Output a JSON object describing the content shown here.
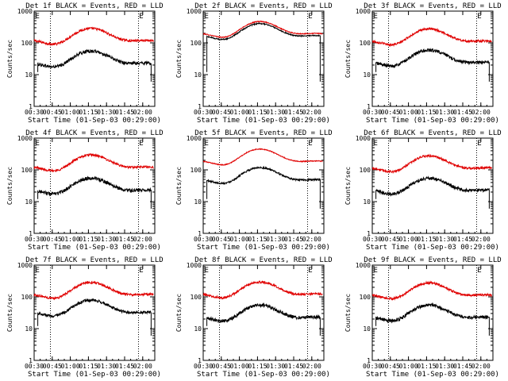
{
  "figure": {
    "background": "#ffffff",
    "axis_color": "#000000"
  },
  "chart_data": [
    {
      "type": "line",
      "title": "Det 1f BLACK = Events, RED = LLD",
      "ylabel": "Counts/sec",
      "xlabel": "Start Time (01-Sep-03 00:29:00)",
      "ylim": [
        1,
        1000
      ],
      "yscale": "log",
      "xlim_min": [
        30,
        130
      ],
      "xtick_labels": [
        "00:30",
        "00:45",
        "01:00",
        "01:15",
        "01:30",
        "01:45",
        "02:00"
      ],
      "xtick_min": [
        30,
        45,
        60,
        75,
        90,
        105,
        120
      ],
      "ytick_labels": [
        "1",
        "10",
        "100",
        "1000"
      ],
      "ytick_values": [
        1,
        10,
        100,
        1000
      ],
      "vlines_min": [
        43.5,
        116.5
      ],
      "marker_label": "E",
      "marker_min": [
        31,
        117
      ],
      "series": [
        {
          "name": "LLD",
          "color": "#e00000",
          "x_start": 30,
          "x_end": 129,
          "base": 145,
          "amp": 1.0,
          "noise": 0.08
        },
        {
          "name": "Events",
          "color": "#000000",
          "x_start": 33,
          "x_end": 127,
          "base": 28,
          "amp": 1.0,
          "noise": 0.12
        }
      ]
    },
    {
      "type": "line",
      "title": "Det 2f BLACK = Events, RED = LLD",
      "ylabel": "Counts/sec",
      "xlabel": "Start Time (01-Sep-03 00:29:00)",
      "ylim": [
        1,
        1000
      ],
      "yscale": "log",
      "xlim_min": [
        30,
        130
      ],
      "xtick_labels": [
        "00:30",
        "00:45",
        "01:00",
        "01:15",
        "01:30",
        "01:45",
        "02:00"
      ],
      "xtick_min": [
        30,
        45,
        60,
        75,
        90,
        105,
        120
      ],
      "ytick_labels": [
        "1",
        "10",
        "100",
        "1000"
      ],
      "ytick_values": [
        1,
        10,
        100,
        1000
      ],
      "vlines_min": [
        43.5,
        116.5
      ],
      "marker_label": "E",
      "marker_min": [
        31,
        117
      ],
      "series": [
        {
          "name": "LLD",
          "color": "#e00000",
          "x_start": 30,
          "x_end": 129,
          "base": 240,
          "amp": 1.0,
          "noise": 0.03
        },
        {
          "name": "Events",
          "color": "#000000",
          "x_start": 33,
          "x_end": 127,
          "base": 205,
          "amp": 1.0,
          "noise": 0.04
        }
      ]
    },
    {
      "type": "line",
      "title": "Det 3f BLACK = Events, RED = LLD",
      "ylabel": "Counts/sec",
      "xlabel": "Start Time (01-Sep-03 00:29:00)",
      "ylim": [
        1,
        1000
      ],
      "yscale": "log",
      "xlim_min": [
        30,
        130
      ],
      "xtick_labels": [
        "00:30",
        "00:45",
        "01:00",
        "01:15",
        "01:30",
        "01:45",
        "02:00"
      ],
      "xtick_min": [
        30,
        45,
        60,
        75,
        90,
        105,
        120
      ],
      "ytick_labels": [
        "1",
        "10",
        "100",
        "1000"
      ],
      "ytick_values": [
        1,
        10,
        100,
        1000
      ],
      "vlines_min": [
        43.5,
        116.5
      ],
      "marker_label": "E",
      "marker_min": [
        31,
        117
      ],
      "series": [
        {
          "name": "LLD",
          "color": "#e00000",
          "x_start": 30,
          "x_end": 129,
          "base": 140,
          "amp": 1.0,
          "noise": 0.08
        },
        {
          "name": "Events",
          "color": "#000000",
          "x_start": 33,
          "x_end": 127,
          "base": 30,
          "amp": 1.0,
          "noise": 0.12
        }
      ]
    },
    {
      "type": "line",
      "title": "Det 4f BLACK = Events, RED = LLD",
      "ylabel": "Counts/sec",
      "xlabel": "Start Time (01-Sep-03 00:29:00)",
      "ylim": [
        1,
        1000
      ],
      "yscale": "log",
      "xlim_min": [
        30,
        130
      ],
      "xtick_labels": [
        "00:30",
        "00:45",
        "01:00",
        "01:15",
        "01:30",
        "01:45",
        "02:00"
      ],
      "xtick_min": [
        30,
        45,
        60,
        75,
        90,
        105,
        120
      ],
      "ytick_labels": [
        "1",
        "10",
        "100",
        "1000"
      ],
      "ytick_values": [
        1,
        10,
        100,
        1000
      ],
      "vlines_min": [
        43.5,
        116.5
      ],
      "marker_label": "E",
      "marker_min": [
        31,
        117
      ],
      "series": [
        {
          "name": "LLD",
          "color": "#e00000",
          "x_start": 30,
          "x_end": 129,
          "base": 150,
          "amp": 1.0,
          "noise": 0.08
        },
        {
          "name": "Events",
          "color": "#000000",
          "x_start": 33,
          "x_end": 127,
          "base": 28,
          "amp": 1.0,
          "noise": 0.12
        }
      ]
    },
    {
      "type": "line",
      "title": "Det 5f BLACK = Events, RED = LLD",
      "ylabel": "Counts/sec",
      "xlabel": "Start Time (01-Sep-03 00:29:00)",
      "ylim": [
        1,
        1000
      ],
      "yscale": "log",
      "xlim_min": [
        30,
        130
      ],
      "xtick_labels": [
        "00:30",
        "00:45",
        "01:00",
        "01:15",
        "01:30",
        "01:45",
        "02:00"
      ],
      "xtick_min": [
        30,
        45,
        60,
        75,
        90,
        105,
        120
      ],
      "ytick_labels": [
        "1",
        "10",
        "100",
        "1000"
      ],
      "ytick_values": [
        1,
        10,
        100,
        1000
      ],
      "vlines_min": [
        43.5,
        116.5
      ],
      "marker_label": "E",
      "marker_min": [
        31,
        117
      ],
      "series": [
        {
          "name": "LLD",
          "color": "#e00000",
          "x_start": 30,
          "x_end": 129,
          "base": 230,
          "amp": 1.0,
          "noise": 0.03
        },
        {
          "name": "Events",
          "color": "#000000",
          "x_start": 33,
          "x_end": 127,
          "base": 60,
          "amp": 1.0,
          "noise": 0.06
        }
      ]
    },
    {
      "type": "line",
      "title": "Det 6f BLACK = Events, RED = LLD",
      "ylabel": "Counts/sec",
      "xlabel": "Start Time (01-Sep-03 00:29:00)",
      "ylim": [
        1,
        1000
      ],
      "yscale": "log",
      "xlim_min": [
        30,
        130
      ],
      "xtick_labels": [
        "00:30",
        "00:45",
        "01:00",
        "01:15",
        "01:30",
        "01:45",
        "02:00"
      ],
      "xtick_min": [
        30,
        45,
        60,
        75,
        90,
        105,
        120
      ],
      "ytick_labels": [
        "1",
        "10",
        "100",
        "1000"
      ],
      "ytick_values": [
        1,
        10,
        100,
        1000
      ],
      "vlines_min": [
        43.5,
        116.5
      ],
      "marker_label": "E",
      "marker_min": [
        31,
        117
      ],
      "series": [
        {
          "name": "LLD",
          "color": "#e00000",
          "x_start": 30,
          "x_end": 129,
          "base": 140,
          "amp": 1.0,
          "noise": 0.08
        },
        {
          "name": "Events",
          "color": "#000000",
          "x_start": 33,
          "x_end": 127,
          "base": 28,
          "amp": 1.0,
          "noise": 0.12
        }
      ]
    },
    {
      "type": "line",
      "title": "Det 7f BLACK = Events, RED = LLD",
      "ylabel": "Counts/sec",
      "xlabel": "Start Time (01-Sep-03 00:29:00)",
      "ylim": [
        1,
        1000
      ],
      "yscale": "log",
      "xlim_min": [
        30,
        130
      ],
      "xtick_labels": [
        "00:30",
        "00:45",
        "01:00",
        "01:15",
        "01:30",
        "01:45",
        "02:00"
      ],
      "xtick_min": [
        30,
        45,
        60,
        75,
        90,
        105,
        120
      ],
      "ytick_labels": [
        "1",
        "10",
        "100",
        "1000"
      ],
      "ytick_values": [
        1,
        10,
        100,
        1000
      ],
      "vlines_min": [
        43.5,
        116.5
      ],
      "marker_label": "E",
      "marker_min": [
        31,
        117
      ],
      "series": [
        {
          "name": "LLD",
          "color": "#e00000",
          "x_start": 30,
          "x_end": 129,
          "base": 145,
          "amp": 1.0,
          "noise": 0.08
        },
        {
          "name": "Events",
          "color": "#000000",
          "x_start": 33,
          "x_end": 127,
          "base": 40,
          "amp": 1.0,
          "noise": 0.1
        }
      ]
    },
    {
      "type": "line",
      "title": "Det 8f BLACK = Events, RED = LLD",
      "ylabel": "Counts/sec",
      "xlabel": "Start Time (01-Sep-03 00:29:00)",
      "ylim": [
        1,
        1000
      ],
      "yscale": "log",
      "xlim_min": [
        30,
        130
      ],
      "xtick_labels": [
        "00:30",
        "00:45",
        "01:00",
        "01:15",
        "01:30",
        "01:45",
        "02:00"
      ],
      "xtick_min": [
        30,
        45,
        60,
        75,
        90,
        105,
        120
      ],
      "ytick_labels": [
        "1",
        "10",
        "100",
        "1000"
      ],
      "ytick_values": [
        1,
        10,
        100,
        1000
      ],
      "vlines_min": [
        43.5,
        116.5
      ],
      "marker_label": "E",
      "marker_min": [
        31,
        117
      ],
      "series": [
        {
          "name": "LLD",
          "color": "#e00000",
          "x_start": 30,
          "x_end": 129,
          "base": 150,
          "amp": 1.0,
          "noise": 0.08
        },
        {
          "name": "Events",
          "color": "#000000",
          "x_start": 33,
          "x_end": 127,
          "base": 28,
          "amp": 1.0,
          "noise": 0.12
        }
      ]
    },
    {
      "type": "line",
      "title": "Det 9f BLACK = Events, RED = LLD",
      "ylabel": "Counts/sec",
      "xlabel": "Start Time (01-Sep-03 00:29:00)",
      "ylim": [
        1,
        1000
      ],
      "yscale": "log",
      "xlim_min": [
        30,
        130
      ],
      "xtick_labels": [
        "00:30",
        "00:45",
        "01:00",
        "01:15",
        "01:30",
        "01:45",
        "02:00"
      ],
      "xtick_min": [
        30,
        45,
        60,
        75,
        90,
        105,
        120
      ],
      "ytick_labels": [
        "1",
        "10",
        "100",
        "1000"
      ],
      "ytick_values": [
        1,
        10,
        100,
        1000
      ],
      "vlines_min": [
        43.5,
        116.5
      ],
      "marker_label": "E",
      "marker_min": [
        31,
        117
      ],
      "series": [
        {
          "name": "LLD",
          "color": "#e00000",
          "x_start": 30,
          "x_end": 129,
          "base": 140,
          "amp": 1.0,
          "noise": 0.08
        },
        {
          "name": "Events",
          "color": "#000000",
          "x_start": 33,
          "x_end": 127,
          "base": 28,
          "amp": 1.0,
          "noise": 0.12
        }
      ]
    }
  ]
}
